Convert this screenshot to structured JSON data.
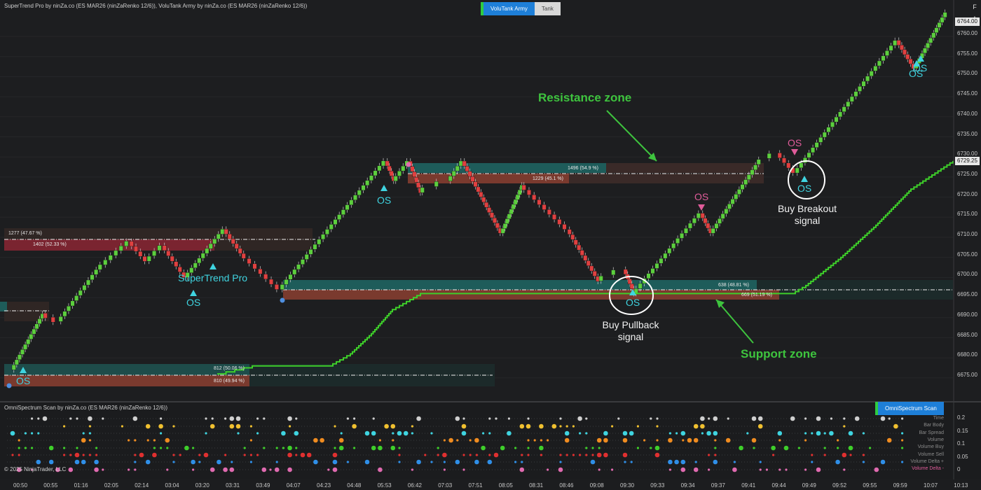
{
  "header": {
    "indicators": "SuperTrend Pro by ninZa.co (ES MAR26 (ninZaRenko 12/6)), VoluTank Army by ninZa.co (ES MAR26 (ninZaRenko 12/6))",
    "tab_active": "VoluTank Army",
    "tab_inactive": "Tank",
    "corner_button": "F"
  },
  "colors": {
    "bull": "#4fbf3a",
    "bear": "#d83b3b",
    "supertrend": "#3ecf2a",
    "accent_tab": "#1e7fd8",
    "annotation": "#3ec43e",
    "os_cyan": "#3fd4e0",
    "os_pink": "#e05c9a"
  },
  "price_axis": {
    "ticks": [
      "6760.00",
      "6755.00",
      "6750.00",
      "6745.00",
      "6740.00",
      "6735.00",
      "6730.00",
      "6725.00",
      "6720.00",
      "6715.00",
      "6710.00",
      "6705.00",
      "6700.00",
      "6695.00",
      "6690.00",
      "6685.00",
      "6680.00",
      "6675.00"
    ],
    "last_price": "6764.00",
    "supertrend_price": "6729.25"
  },
  "zones": [
    {
      "buy_label": "812 (50.06 %)",
      "sell_label": "810 (49.94 %)"
    },
    {
      "buy_label": "1277 (47.67 %)",
      "sell_label": "1402 (52.33 %)"
    },
    {
      "buy_label": "1496 (54.9 %)",
      "sell_label": "1229 (45.1 %)"
    },
    {
      "buy_label": "638 (48.81 %)",
      "sell_label": "669 (51.19 %)"
    }
  ],
  "annotations": {
    "resistance": "Resistance zone",
    "support": "Support zone",
    "buy_pullback_line1": "Buy Pullback",
    "buy_pullback_line2": "signal",
    "buy_breakout_line1": "Buy Breakout",
    "buy_breakout_line2": "signal",
    "supertrend_label": "SuperTrend Pro",
    "os": "OS"
  },
  "oscillator": {
    "title": "OmniSpectrum Scan by ninZa.co (ES MAR26 (ninZaRenko 12/6))",
    "tab": "OmniSpectrum Scan",
    "ticks": [
      "0.2",
      "0.15",
      "0.1",
      "0.05",
      "0"
    ],
    "rows": [
      "Time",
      "Bar Body",
      "Bar Spread",
      "Volume",
      "Volume Buy",
      "Volume Sell",
      "Volume Delta +",
      "Volume Delta -"
    ]
  },
  "copyright": "© 2025 NinjaTrader, LLC",
  "time_axis": [
    "00:50",
    "00:55",
    "01:16",
    "02:05",
    "02:14",
    "03:04",
    "03:20",
    "03:31",
    "03:49",
    "04:07",
    "04:23",
    "04:48",
    "05:53",
    "06:42",
    "07:03",
    "07:51",
    "08:05",
    "08:31",
    "08:46",
    "09:08",
    "09:30",
    "09:33",
    "09:34",
    "09:37",
    "09:41",
    "09:44",
    "09:49",
    "09:52",
    "09:55",
    "09:59",
    "10:07",
    "10:13"
  ]
}
